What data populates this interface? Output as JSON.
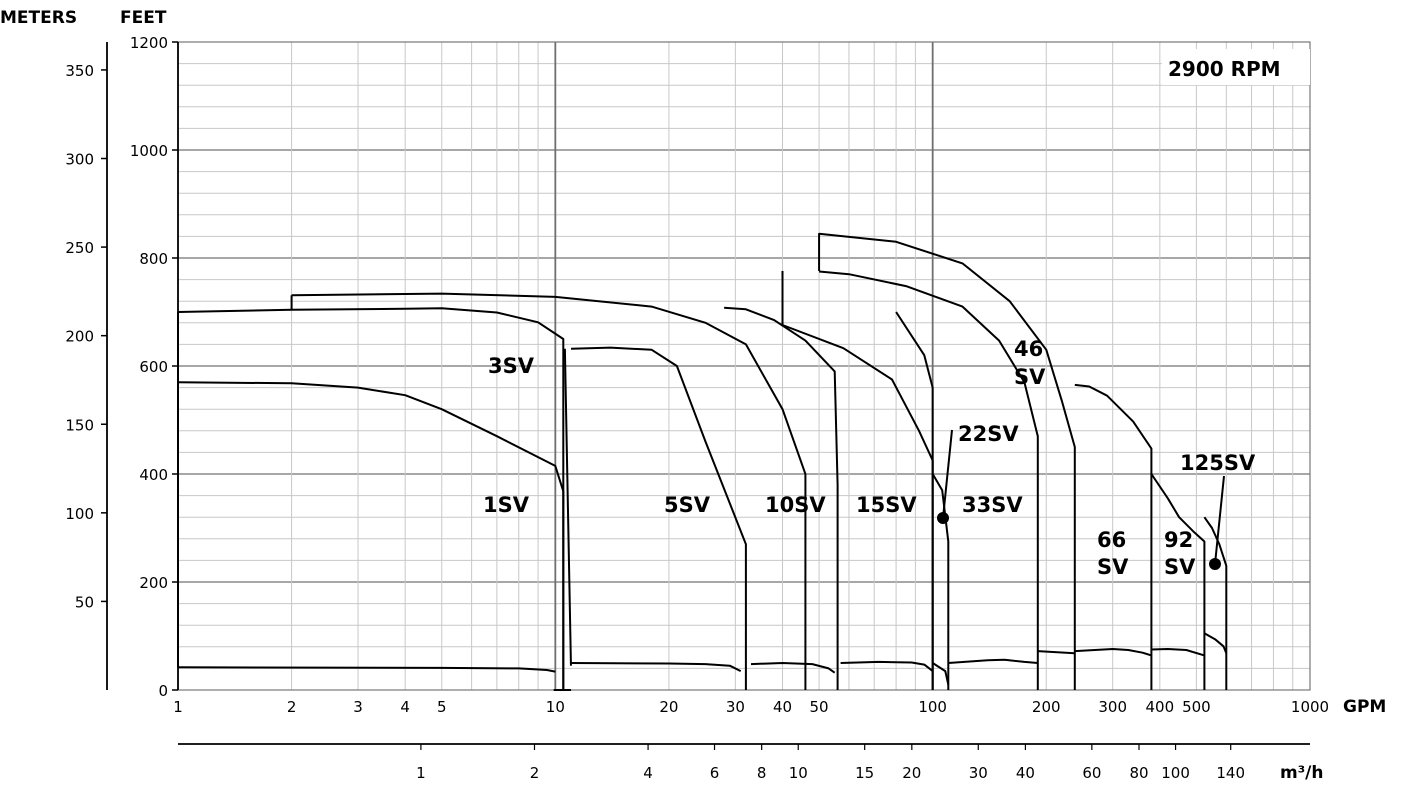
{
  "chart_data": {
    "type": "area",
    "title": "2900 RPM",
    "x_axis": {
      "label": "GPM",
      "scale": "log",
      "range": [
        1,
        1000
      ],
      "ticks": [
        1,
        2,
        3,
        4,
        5,
        10,
        20,
        30,
        40,
        50,
        100,
        200,
        300,
        400,
        500,
        1000
      ],
      "tick_labels": [
        "1",
        "2",
        "3",
        "4",
        "5",
        "10",
        "20",
        "30",
        "40",
        "50",
        "100",
        "200",
        "300",
        "400",
        "500",
        "1000"
      ]
    },
    "x2_axis": {
      "label": "m³/h",
      "scale": "log",
      "ticks": [
        1,
        2,
        4,
        6,
        8,
        10,
        15,
        20,
        30,
        40,
        60,
        80,
        100,
        140
      ],
      "tick_labels": [
        "1",
        "2",
        "4",
        "6",
        "8",
        "10",
        "15",
        "20",
        "30",
        "40",
        "60",
        "80",
        "100",
        "140"
      ]
    },
    "y_axis": {
      "label": "FEET",
      "range": [
        0,
        1200
      ],
      "ticks": [
        0,
        200,
        400,
        600,
        800,
        1000,
        1200
      ],
      "tick_labels": [
        "0",
        "200",
        "400",
        "600",
        "800",
        "1000",
        "1200"
      ]
    },
    "y2_axis": {
      "label": "METERS",
      "ticks": [
        50,
        100,
        150,
        200,
        250,
        300,
        350
      ],
      "tick_labels": [
        "50",
        "100",
        "150",
        "200",
        "250",
        "300",
        "350"
      ]
    },
    "grid": true,
    "series": [
      {
        "name": "1SV",
        "upper": [
          [
            1,
            570
          ],
          [
            2,
            568
          ],
          [
            3,
            560
          ],
          [
            4,
            546
          ],
          [
            5,
            520
          ],
          [
            7,
            470
          ],
          [
            10,
            415
          ],
          [
            10.5,
            368
          ],
          [
            10.5,
            0
          ],
          [
            9.9,
            0
          ]
        ],
        "lower": [
          [
            1,
            42
          ],
          [
            5,
            41
          ],
          [
            8,
            40
          ],
          [
            9.5,
            37
          ],
          [
            10,
            34
          ]
        ]
      },
      {
        "name": "3SV",
        "upper": [
          [
            1,
            700
          ],
          [
            2,
            704
          ],
          [
            4,
            706
          ],
          [
            5,
            707
          ],
          [
            7,
            699
          ],
          [
            9,
            681
          ],
          [
            10.5,
            650
          ],
          [
            10.5,
            0
          ],
          [
            11,
            0
          ]
        ],
        "lower": [
          [
            1,
            700
          ],
          [
            1,
            570
          ]
        ]
      },
      {
        "name": "5SV",
        "upper": [
          [
            11,
            632
          ],
          [
            14,
            634
          ],
          [
            18,
            630
          ],
          [
            21,
            600
          ],
          [
            25,
            460
          ],
          [
            32,
            270
          ],
          [
            32,
            0
          ]
        ],
        "lower": [
          [
            11,
            50
          ],
          [
            20,
            49
          ],
          [
            25,
            48
          ],
          [
            29,
            45
          ],
          [
            31,
            35
          ]
        ]
      },
      {
        "name": "10SV",
        "upper": [
          [
            28,
            708
          ],
          [
            32,
            705
          ],
          [
            38,
            685
          ],
          [
            46,
            647
          ],
          [
            55,
            590
          ],
          [
            56,
            380
          ],
          [
            56,
            0
          ]
        ],
        "lower": [
          [
            33,
            48
          ],
          [
            40,
            50
          ],
          [
            48,
            48
          ],
          [
            53,
            40
          ],
          [
            55,
            32
          ]
        ]
      },
      {
        "name": "15SV",
        "upper": [
          [
            40,
            676
          ],
          [
            58,
            633
          ],
          [
            78,
            575
          ],
          [
            92,
            480
          ],
          [
            100,
            425
          ],
          [
            100,
            0
          ]
        ],
        "lower": [
          [
            57,
            50
          ],
          [
            72,
            52
          ],
          [
            88,
            51
          ],
          [
            95,
            47
          ],
          [
            100,
            35
          ]
        ]
      },
      {
        "name": "22SV",
        "upper": [
          [
            100,
            400
          ],
          [
            106,
            370
          ],
          [
            110,
            275
          ],
          [
            110,
            0
          ]
        ],
        "lower": [
          [
            100,
            50
          ],
          [
            108,
            35
          ],
          [
            110,
            10
          ]
        ]
      },
      {
        "name": "33SV",
        "upper": [
          [
            50,
            775
          ],
          [
            60,
            770
          ],
          [
            85,
            748
          ],
          [
            120,
            710
          ],
          [
            150,
            647
          ],
          [
            175,
            570
          ],
          [
            190,
            470
          ],
          [
            190,
            0
          ]
        ],
        "lower": [
          [
            110,
            50
          ],
          [
            140,
            55
          ],
          [
            155,
            56
          ],
          [
            175,
            52
          ],
          [
            190,
            50
          ]
        ]
      },
      {
        "name": "46SV",
        "upper": [
          [
            50,
            845
          ],
          [
            80,
            830
          ],
          [
            120,
            790
          ],
          [
            160,
            720
          ],
          [
            200,
            630
          ],
          [
            220,
            535
          ],
          [
            238,
            450
          ],
          [
            238,
            0
          ]
        ],
        "lower": [
          [
            190,
            72
          ],
          [
            238,
            68
          ]
        ]
      },
      {
        "name": "66SV",
        "upper": [
          [
            238,
            565
          ],
          [
            260,
            562
          ],
          [
            290,
            545
          ],
          [
            340,
            497
          ],
          [
            380,
            447
          ],
          [
            380,
            0
          ]
        ],
        "lower": [
          [
            238,
            72
          ],
          [
            300,
            76
          ],
          [
            330,
            74
          ],
          [
            360,
            69
          ],
          [
            380,
            64
          ]
        ]
      },
      {
        "name": "92SV",
        "upper": [
          [
            380,
            400
          ],
          [
            420,
            355
          ],
          [
            450,
            320
          ],
          [
            490,
            294
          ],
          [
            525,
            275
          ],
          [
            525,
            0
          ]
        ],
        "lower": [
          [
            380,
            75
          ],
          [
            420,
            76
          ],
          [
            470,
            74
          ],
          [
            525,
            64
          ]
        ]
      },
      {
        "name": "125SV",
        "upper": [
          [
            525,
            320
          ],
          [
            550,
            300
          ],
          [
            575,
            270
          ],
          [
            600,
            230
          ],
          [
            600,
            0
          ]
        ],
        "lower": [
          [
            525,
            105
          ],
          [
            560,
            94
          ],
          [
            590,
            81
          ],
          [
            600,
            68
          ]
        ]
      }
    ],
    "annotations": [
      "46\nSV",
      "66\nSV",
      "92\nSV"
    ]
  },
  "labels": {
    "meters": "METERS",
    "feet": "FEET",
    "rpm": "2900 RPM",
    "gpm": "GPM",
    "m3h": "m³/h",
    "m1": "1SV",
    "m3": "3SV",
    "m5": "5SV",
    "m10": "10SV",
    "m15": "15SV",
    "m22": "22SV",
    "m33": "33SV",
    "m46a": "46",
    "m46b": "SV",
    "m66a": "66",
    "m66b": "SV",
    "m92a": "92",
    "m92b": "SV",
    "m125": "125SV"
  }
}
